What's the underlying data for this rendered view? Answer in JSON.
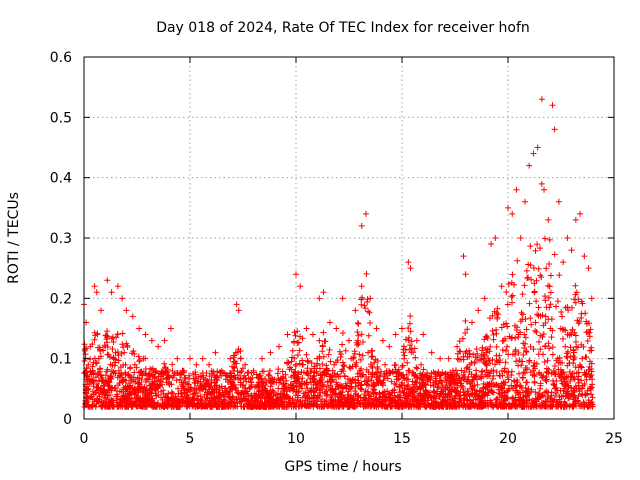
{
  "chart_data": {
    "type": "scatter",
    "title": "Day 018 of 2024, Rate Of TEC Index for receiver hofn",
    "xlabel": "GPS time / hours",
    "ylabel": "ROTI / TECUs",
    "xlim": [
      0,
      25
    ],
    "ylim": [
      0,
      0.6
    ],
    "xticks": [
      "0",
      "5",
      "10",
      "15",
      "20",
      "25"
    ],
    "yticks": [
      "0",
      "0.1",
      "0.2",
      "0.3",
      "0.4",
      "0.5",
      "0.6"
    ],
    "grid": true,
    "marker": "+",
    "color": "#ff0000",
    "series": [
      {
        "name": "ROTI",
        "points": [
          [
            0.0,
            0.19
          ],
          [
            0.1,
            0.16
          ],
          [
            0.3,
            0.12
          ],
          [
            0.5,
            0.22
          ],
          [
            0.6,
            0.21
          ],
          [
            0.8,
            0.18
          ],
          [
            1.1,
            0.23
          ],
          [
            1.3,
            0.21
          ],
          [
            1.6,
            0.22
          ],
          [
            1.8,
            0.2
          ],
          [
            2.0,
            0.18
          ],
          [
            2.3,
            0.17
          ],
          [
            2.6,
            0.15
          ],
          [
            2.9,
            0.14
          ],
          [
            3.2,
            0.13
          ],
          [
            3.5,
            0.12
          ],
          [
            3.8,
            0.13
          ],
          [
            4.1,
            0.15
          ],
          [
            4.4,
            0.1
          ],
          [
            4.7,
            0.08
          ],
          [
            5.0,
            0.1
          ],
          [
            5.3,
            0.09
          ],
          [
            5.6,
            0.1
          ],
          [
            5.9,
            0.09
          ],
          [
            6.2,
            0.11
          ],
          [
            6.5,
            0.08
          ],
          [
            6.9,
            0.1
          ],
          [
            7.2,
            0.19
          ],
          [
            7.3,
            0.18
          ],
          [
            7.6,
            0.09
          ],
          [
            8.0,
            0.08
          ],
          [
            8.4,
            0.1
          ],
          [
            8.8,
            0.11
          ],
          [
            9.2,
            0.12
          ],
          [
            9.6,
            0.14
          ],
          [
            10.0,
            0.24
          ],
          [
            10.2,
            0.22
          ],
          [
            10.5,
            0.15
          ],
          [
            10.8,
            0.14
          ],
          [
            11.1,
            0.2
          ],
          [
            11.3,
            0.21
          ],
          [
            11.6,
            0.16
          ],
          [
            11.9,
            0.15
          ],
          [
            12.2,
            0.2
          ],
          [
            12.5,
            0.13
          ],
          [
            12.8,
            0.18
          ],
          [
            13.1,
            0.32
          ],
          [
            13.3,
            0.34
          ],
          [
            13.5,
            0.2
          ],
          [
            13.8,
            0.15
          ],
          [
            14.1,
            0.13
          ],
          [
            14.4,
            0.12
          ],
          [
            14.7,
            0.14
          ],
          [
            15.0,
            0.15
          ],
          [
            15.3,
            0.26
          ],
          [
            15.4,
            0.25
          ],
          [
            15.7,
            0.13
          ],
          [
            16.0,
            0.14
          ],
          [
            16.4,
            0.11
          ],
          [
            16.8,
            0.1
          ],
          [
            17.2,
            0.1
          ],
          [
            17.6,
            0.12
          ],
          [
            17.9,
            0.27
          ],
          [
            18.0,
            0.24
          ],
          [
            18.3,
            0.16
          ],
          [
            18.6,
            0.18
          ],
          [
            18.9,
            0.2
          ],
          [
            19.2,
            0.29
          ],
          [
            19.4,
            0.3
          ],
          [
            19.7,
            0.22
          ],
          [
            20.0,
            0.35
          ],
          [
            20.2,
            0.34
          ],
          [
            20.4,
            0.38
          ],
          [
            20.6,
            0.3
          ],
          [
            20.8,
            0.36
          ],
          [
            21.0,
            0.42
          ],
          [
            21.2,
            0.44
          ],
          [
            21.4,
            0.45
          ],
          [
            21.6,
            0.53
          ],
          [
            21.7,
            0.38
          ],
          [
            21.9,
            0.33
          ],
          [
            22.1,
            0.52
          ],
          [
            22.2,
            0.48
          ],
          [
            22.4,
            0.36
          ],
          [
            22.6,
            0.26
          ],
          [
            22.8,
            0.3
          ],
          [
            23.0,
            0.28
          ],
          [
            23.2,
            0.33
          ],
          [
            23.4,
            0.34
          ],
          [
            23.6,
            0.27
          ],
          [
            23.8,
            0.25
          ],
          [
            23.95,
            0.2
          ],
          [
            0.2,
            0.09
          ],
          [
            0.4,
            0.08
          ],
          [
            0.7,
            0.1
          ],
          [
            1.0,
            0.12
          ],
          [
            1.4,
            0.1
          ],
          [
            1.9,
            0.11
          ],
          [
            2.4,
            0.09
          ],
          [
            2.8,
            0.1
          ],
          [
            3.4,
            0.08
          ],
          [
            4.0,
            0.07
          ],
          [
            4.6,
            0.06
          ],
          [
            5.2,
            0.05
          ],
          [
            5.8,
            0.06
          ],
          [
            6.4,
            0.05
          ],
          [
            7.0,
            0.06
          ],
          [
            7.8,
            0.05
          ],
          [
            8.6,
            0.06
          ],
          [
            9.4,
            0.07
          ],
          [
            10.3,
            0.09
          ],
          [
            11.0,
            0.1
          ],
          [
            11.8,
            0.09
          ],
          [
            12.6,
            0.1
          ],
          [
            13.4,
            0.11
          ],
          [
            14.2,
            0.09
          ],
          [
            15.1,
            0.1
          ],
          [
            15.9,
            0.09
          ],
          [
            16.6,
            0.07
          ],
          [
            17.4,
            0.08
          ],
          [
            18.2,
            0.09
          ],
          [
            19.0,
            0.11
          ],
          [
            19.8,
            0.13
          ],
          [
            20.5,
            0.14
          ],
          [
            21.3,
            0.16
          ],
          [
            22.0,
            0.15
          ],
          [
            22.7,
            0.12
          ],
          [
            23.5,
            0.1
          ]
        ]
      }
    ],
    "dense_band": {
      "ymin": 0.02,
      "ymax": 0.08,
      "xmin": 0,
      "xmax": 24
    }
  }
}
